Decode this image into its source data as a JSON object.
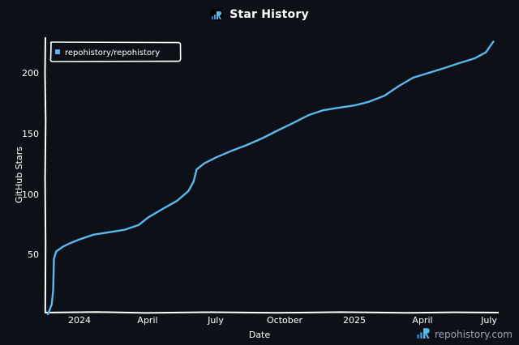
{
  "header": {
    "title": "Star History",
    "logo_icon": "repohistory-logo-icon"
  },
  "watermark": {
    "text": "repohistory.com",
    "icon": "repohistory-logo-icon"
  },
  "colors": {
    "background": "#0d1117",
    "series": "#5bb8ec",
    "axis": "#ffffff",
    "watermark_text": "#9aa4b2"
  },
  "chart_data": {
    "type": "line",
    "title": "Star History",
    "xlabel": "Date",
    "ylabel": "GitHub Stars",
    "ylim": [
      0,
      230
    ],
    "grid": false,
    "legend_position": "top-left",
    "x_tick_labels": [
      "2024",
      "April",
      "July",
      "October",
      "2025",
      "April",
      "July"
    ],
    "y_tick_labels": [
      "50",
      "100",
      "150",
      "200"
    ],
    "y_ticks": [
      50,
      100,
      150,
      200
    ],
    "series": [
      {
        "name": "repohistory/repohistory",
        "color": "#5bb8ec",
        "x": [
          "2023-11-20",
          "2023-11-25",
          "2023-11-27",
          "2023-11-28",
          "2023-12-01",
          "2023-12-10",
          "2023-12-20",
          "2024-01-01",
          "2024-01-20",
          "2024-02-10",
          "2024-03-01",
          "2024-03-20",
          "2024-04-01",
          "2024-04-20",
          "2024-05-10",
          "2024-05-25",
          "2024-06-01",
          "2024-06-05",
          "2024-06-15",
          "2024-07-01",
          "2024-07-20",
          "2024-08-10",
          "2024-09-01",
          "2024-09-20",
          "2024-10-10",
          "2024-11-01",
          "2024-11-20",
          "2024-12-10",
          "2025-01-01",
          "2025-01-20",
          "2025-02-10",
          "2025-03-01",
          "2025-03-20",
          "2025-04-10",
          "2025-05-01",
          "2025-05-20",
          "2025-06-10",
          "2025-06-25",
          "2025-07-05"
        ],
        "values": [
          0,
          8,
          20,
          46,
          52,
          56,
          59,
          62,
          66,
          68,
          70,
          74,
          80,
          87,
          94,
          102,
          110,
          120,
          125,
          130,
          135,
          140,
          146,
          152,
          158,
          165,
          169,
          171,
          173,
          176,
          181,
          189,
          196,
          200,
          204,
          208,
          212,
          217,
          226
        ]
      }
    ]
  }
}
